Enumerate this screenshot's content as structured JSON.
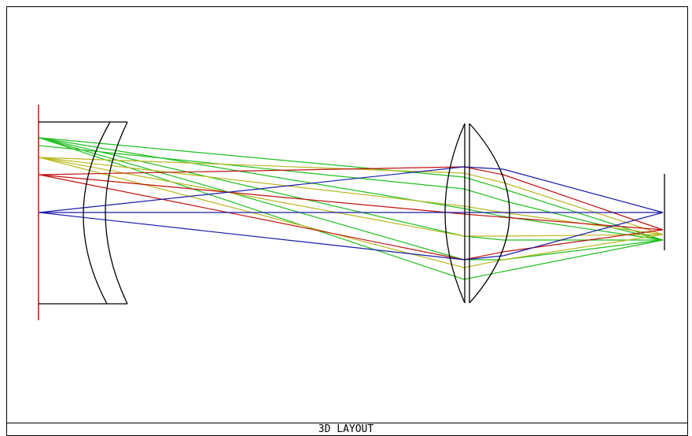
{
  "footer": {
    "title": "3D LAYOUT"
  }
}
